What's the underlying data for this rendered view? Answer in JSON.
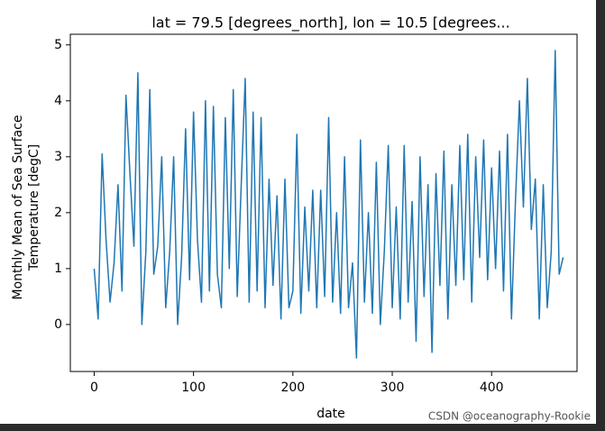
{
  "chart_data": {
    "type": "line",
    "title": "lat = 79.5 [degrees_north], lon = 10.5 [degrees...",
    "ylabel": [
      "Monthly Mean of Sea Surface",
      "Temperature [degC]"
    ],
    "xlabel": "date",
    "watermark": "CSDN @oceanography-Rookie",
    "color": "#1f77b4",
    "x": [
      0,
      4,
      8,
      12,
      16,
      20,
      24,
      28,
      32,
      36,
      40,
      44,
      48,
      52,
      56,
      60,
      64,
      68,
      72,
      76,
      80,
      84,
      88,
      92,
      96,
      100,
      104,
      108,
      112,
      116,
      120,
      124,
      128,
      132,
      136,
      140,
      144,
      148,
      152,
      156,
      160,
      164,
      168,
      172,
      176,
      180,
      184,
      188,
      192,
      196,
      200,
      204,
      208,
      212,
      216,
      220,
      224,
      228,
      232,
      236,
      240,
      244,
      248,
      252,
      256,
      260,
      264,
      268,
      272,
      276,
      280,
      284,
      288,
      292,
      296,
      300,
      304,
      308,
      312,
      316,
      320,
      324,
      328,
      332,
      336,
      340,
      344,
      348,
      352,
      356,
      360,
      364,
      368,
      372,
      376,
      380,
      384,
      388,
      392,
      396,
      400,
      404,
      408,
      412,
      416,
      420,
      424,
      428,
      432,
      436,
      440,
      444,
      448,
      452,
      456,
      460,
      464,
      468,
      472
    ],
    "values": [
      1.0,
      0.1,
      3.05,
      1.5,
      0.4,
      1.1,
      2.5,
      0.6,
      4.1,
      2.7,
      1.4,
      4.5,
      0.0,
      1.3,
      4.2,
      0.9,
      1.4,
      3.0,
      0.3,
      1.3,
      3.0,
      0.0,
      1.2,
      3.5,
      0.8,
      3.8,
      1.5,
      0.4,
      4.0,
      0.6,
      3.9,
      0.9,
      0.3,
      3.7,
      1.0,
      4.2,
      0.5,
      2.5,
      4.4,
      0.4,
      3.8,
      0.6,
      3.7,
      0.3,
      2.6,
      0.7,
      2.3,
      0.1,
      2.6,
      0.3,
      0.6,
      3.4,
      0.2,
      2.1,
      0.6,
      2.4,
      0.3,
      2.4,
      0.5,
      3.7,
      0.4,
      2.0,
      0.2,
      3.0,
      0.3,
      1.1,
      -0.6,
      3.3,
      0.4,
      2.0,
      0.2,
      2.9,
      0.0,
      1.3,
      3.2,
      0.3,
      2.1,
      0.1,
      3.2,
      0.4,
      2.2,
      -0.3,
      3.0,
      0.5,
      2.5,
      -0.5,
      2.7,
      0.7,
      3.1,
      0.1,
      2.5,
      0.7,
      3.2,
      0.8,
      3.4,
      0.4,
      3.0,
      1.2,
      3.3,
      0.8,
      2.8,
      1.0,
      3.1,
      0.6,
      3.4,
      0.1,
      2.2,
      4.0,
      2.1,
      4.4,
      1.7,
      2.6,
      0.1,
      2.5,
      0.3,
      1.3,
      4.9,
      0.9,
      1.2
    ],
    "xlim": [
      -24,
      486
    ],
    "ylim": [
      -0.84,
      5.19
    ],
    "xticks": [
      0,
      100,
      200,
      300,
      400
    ],
    "yticks": [
      0,
      1,
      2,
      3,
      4,
      5
    ]
  }
}
